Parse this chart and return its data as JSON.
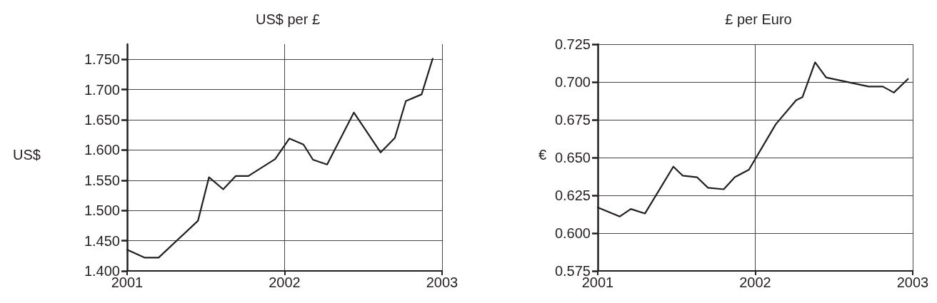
{
  "chart_data": [
    {
      "type": "line",
      "title": "US$ per £",
      "ylabel": "US$",
      "x": [
        2001.0,
        2001.11,
        2001.2,
        2001.45,
        2001.52,
        2001.61,
        2001.69,
        2001.77,
        2001.94,
        2002.03,
        2002.12,
        2002.18,
        2002.27,
        2002.44,
        2002.61,
        2002.7,
        2002.77,
        2002.87,
        2002.94
      ],
      "series": [
        {
          "color": "#231f20",
          "values": [
            1.435,
            1.422,
            1.422,
            1.483,
            1.555,
            1.535,
            1.557,
            1.557,
            1.585,
            1.619,
            1.609,
            1.584,
            1.576,
            1.662,
            1.596,
            1.62,
            1.681,
            1.692,
            1.751
          ]
        }
      ],
      "xlim": [
        2001,
        2003
      ],
      "xticks": [
        2001,
        2002,
        2003
      ],
      "ylim": [
        1.4,
        1.775
      ],
      "yticks": [
        {
          "value": 1.4,
          "label": "1.400"
        },
        {
          "value": 1.45,
          "label": "1.450"
        },
        {
          "value": 1.5,
          "label": "1.500"
        },
        {
          "value": 1.55,
          "label": "1.550"
        },
        {
          "value": 1.6,
          "label": "1.600"
        },
        {
          "value": 1.65,
          "label": "1.650"
        },
        {
          "value": 1.7,
          "label": "1.700"
        },
        {
          "value": 1.75,
          "label": "1.750"
        }
      ],
      "grid": true,
      "marker": "none",
      "line_style": "solid"
    },
    {
      "type": "line",
      "title": "£ per Euro",
      "ylabel": "€",
      "x": [
        2001.0,
        2001.14,
        2001.21,
        2001.3,
        2001.48,
        2001.54,
        2001.63,
        2001.7,
        2001.8,
        2001.87,
        2001.96,
        2002.13,
        2002.26,
        2002.3,
        2002.38,
        2002.45,
        2002.72,
        2002.81,
        2002.88,
        2002.97
      ],
      "series": [
        {
          "color": "#231f20",
          "values": [
            0.617,
            0.611,
            0.616,
            0.613,
            0.644,
            0.638,
            0.637,
            0.63,
            0.629,
            0.637,
            0.642,
            0.672,
            0.688,
            0.69,
            0.713,
            0.703,
            0.697,
            0.697,
            0.693,
            0.702
          ]
        }
      ],
      "xlim": [
        2001,
        2003
      ],
      "xticks": [
        2001,
        2002,
        2003
      ],
      "ylim": [
        0.575,
        0.725
      ],
      "yticks": [
        {
          "value": 0.575,
          "label": "0.575"
        },
        {
          "value": 0.6,
          "label": "0.600"
        },
        {
          "value": 0.625,
          "label": "0.625"
        },
        {
          "value": 0.65,
          "label": "0.650"
        },
        {
          "value": 0.675,
          "label": "0.675"
        },
        {
          "value": 0.7,
          "label": "0.700"
        },
        {
          "value": 0.725,
          "label": "0.725"
        }
      ],
      "grid": true,
      "marker": "none",
      "line_style": "solid"
    }
  ]
}
